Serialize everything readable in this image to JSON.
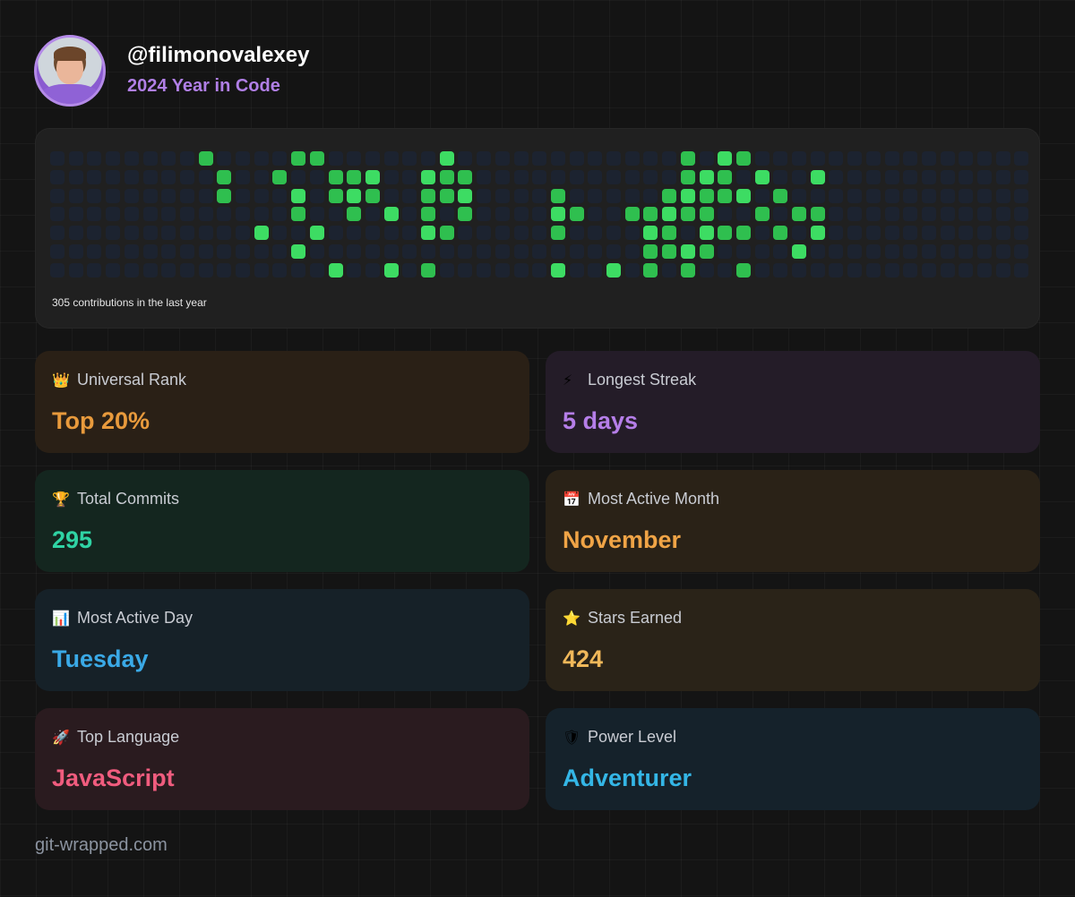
{
  "header": {
    "username": "@filimonovalexey",
    "subtitle": "2024 Year in Code",
    "avatar_icon": "user-avatar"
  },
  "heatmap": {
    "caption": "305 contributions in the last year",
    "weeks": 53,
    "days": 7,
    "active_cells": [
      [
        4,
        8
      ],
      [
        8,
        0
      ],
      [
        9,
        1
      ],
      [
        9,
        2
      ],
      [
        11,
        4
      ],
      [
        12,
        1
      ],
      [
        13,
        0
      ],
      [
        13,
        2
      ],
      [
        13,
        3
      ],
      [
        13,
        5
      ],
      [
        14,
        0
      ],
      [
        14,
        4
      ],
      [
        15,
        1
      ],
      [
        15,
        2
      ],
      [
        15,
        6
      ],
      [
        16,
        1
      ],
      [
        16,
        2
      ],
      [
        16,
        3
      ],
      [
        17,
        1
      ],
      [
        17,
        2
      ],
      [
        18,
        3
      ],
      [
        18,
        6
      ],
      [
        20,
        1
      ],
      [
        20,
        2
      ],
      [
        20,
        3
      ],
      [
        20,
        4
      ],
      [
        20,
        6
      ],
      [
        21,
        0
      ],
      [
        21,
        1
      ],
      [
        21,
        2
      ],
      [
        21,
        4
      ],
      [
        22,
        1
      ],
      [
        22,
        2
      ],
      [
        22,
        3
      ],
      [
        27,
        2
      ],
      [
        27,
        3
      ],
      [
        27,
        4
      ],
      [
        27,
        6
      ],
      [
        28,
        3
      ],
      [
        30,
        6
      ],
      [
        31,
        3
      ],
      [
        32,
        3
      ],
      [
        32,
        4
      ],
      [
        32,
        5
      ],
      [
        32,
        6
      ],
      [
        33,
        2
      ],
      [
        33,
        3
      ],
      [
        33,
        4
      ],
      [
        33,
        5
      ],
      [
        34,
        0
      ],
      [
        34,
        1
      ],
      [
        34,
        2
      ],
      [
        34,
        3
      ],
      [
        34,
        5
      ],
      [
        34,
        6
      ],
      [
        35,
        1
      ],
      [
        35,
        2
      ],
      [
        35,
        3
      ],
      [
        35,
        4
      ],
      [
        35,
        5
      ],
      [
        36,
        0
      ],
      [
        36,
        1
      ],
      [
        36,
        2
      ],
      [
        36,
        4
      ],
      [
        37,
        0
      ],
      [
        37,
        2
      ],
      [
        37,
        4
      ],
      [
        37,
        6
      ],
      [
        38,
        1
      ],
      [
        38,
        3
      ],
      [
        39,
        2
      ],
      [
        39,
        4
      ],
      [
        40,
        3
      ],
      [
        40,
        5
      ],
      [
        41,
        1
      ],
      [
        41,
        3
      ],
      [
        41,
        4
      ]
    ]
  },
  "stats": [
    {
      "icon": "crown-icon",
      "emoji": "👑",
      "label": "Universal Rank",
      "value": "Top 20%",
      "color": "#e89a3c",
      "bg": "#2a2016"
    },
    {
      "icon": "lightning-icon",
      "emoji": "⚡",
      "label": "Longest Streak",
      "value": "5 days",
      "color": "#b57ee8",
      "bg": "#241c28"
    },
    {
      "icon": "trophy-icon",
      "emoji": "🏆",
      "label": "Total Commits",
      "value": "295",
      "color": "#2fd3a4",
      "bg": "#14261f"
    },
    {
      "icon": "calendar-icon",
      "emoji": "📅",
      "label": "Most Active Month",
      "value": "November",
      "color": "#f0a446",
      "bg": "#2a2217"
    },
    {
      "icon": "chart-icon",
      "emoji": "📊",
      "label": "Most Active Day",
      "value": "Tuesday",
      "color": "#3aa9e6",
      "bg": "#162128"
    },
    {
      "icon": "star-icon",
      "emoji": "⭐",
      "label": "Stars Earned",
      "value": "424",
      "color": "#f0b85a",
      "bg": "#2a2318"
    },
    {
      "icon": "rocket-icon",
      "emoji": "🚀",
      "label": "Top Language",
      "value": "JavaScript",
      "color": "#f05c7e",
      "bg": "#2a1b1f"
    },
    {
      "icon": "shield-icon",
      "emoji": "🛡",
      "label": "Power Level",
      "value": "Adventurer",
      "color": "#34b6e6",
      "bg": "#15222b"
    }
  ],
  "footer": {
    "site": "git-wrapped.com"
  }
}
